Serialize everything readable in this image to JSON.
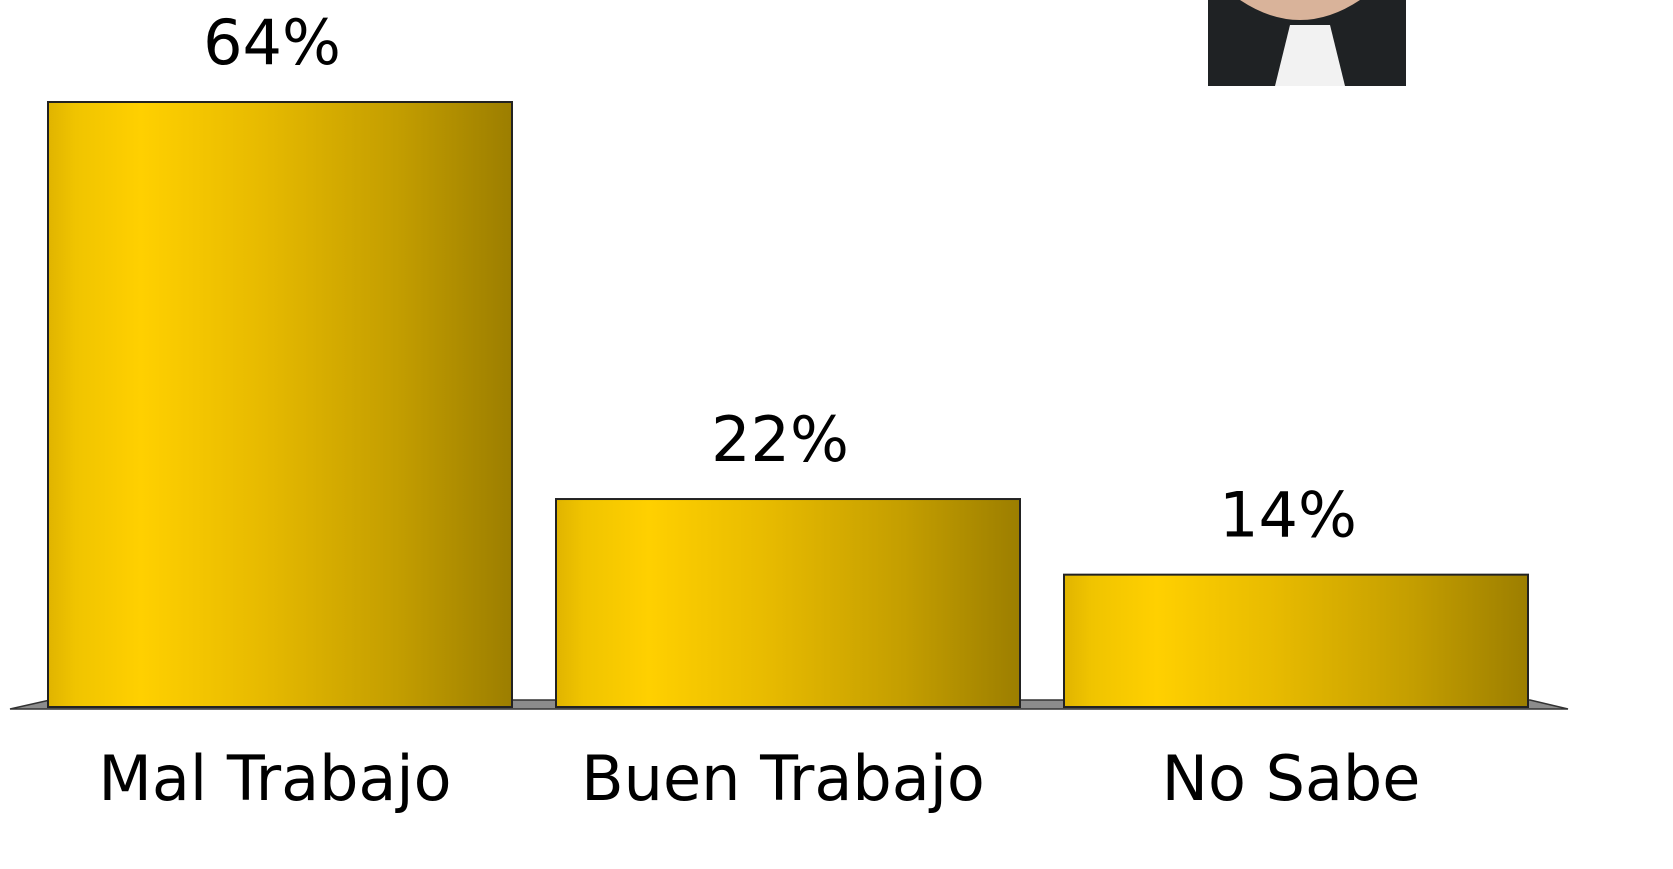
{
  "chart_data": {
    "type": "bar",
    "categories": [
      "Mal Trabajo",
      "Buen Trabajo",
      "No Sabe"
    ],
    "values": [
      64,
      22,
      14
    ],
    "value_labels": [
      "64%",
      "22%",
      "14%"
    ],
    "color": "#e8bc00"
  }
}
